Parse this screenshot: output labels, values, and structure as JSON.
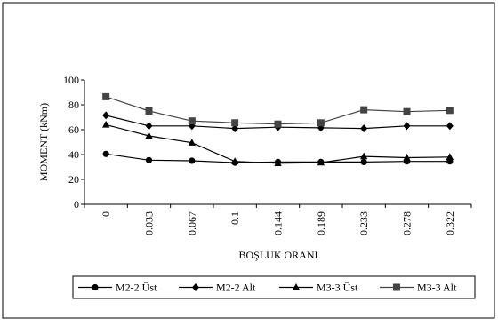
{
  "chart_data": {
    "type": "line",
    "title": "",
    "xlabel": "BOŞLUK ORANI",
    "ylabel": "MOMENT (kNm)",
    "categories": [
      "0",
      "0.033",
      "0.067",
      "0.1",
      "0.144",
      "0.189",
      "0.233",
      "0.278",
      "0.322"
    ],
    "ylim": [
      0,
      100
    ],
    "yticks": [
      0,
      20,
      40,
      60,
      80,
      100
    ],
    "grid": false,
    "legend_position": "bottom",
    "series": [
      {
        "name": "M2-2 Üst",
        "marker": "circle",
        "color": "#000000",
        "values": [
          40.5,
          35.5,
          35,
          33.5,
          34,
          34,
          34,
          34.5,
          34.5
        ]
      },
      {
        "name": "M2-2 Alt",
        "marker": "diamond",
        "color": "#000000",
        "values": [
          71.5,
          63,
          63,
          61,
          62,
          61.5,
          61,
          63,
          63
        ]
      },
      {
        "name": "M3-3 Üst",
        "marker": "triangle",
        "color": "#000000",
        "values": [
          64,
          55,
          49.5,
          34.5,
          33,
          33.5,
          38.5,
          37.5,
          38
        ]
      },
      {
        "name": "M3-3 Alt",
        "marker": "square",
        "color": "#444444",
        "values": [
          86.5,
          75,
          67,
          65.5,
          64.5,
          65.5,
          76,
          74.5,
          75.5
        ]
      }
    ]
  }
}
